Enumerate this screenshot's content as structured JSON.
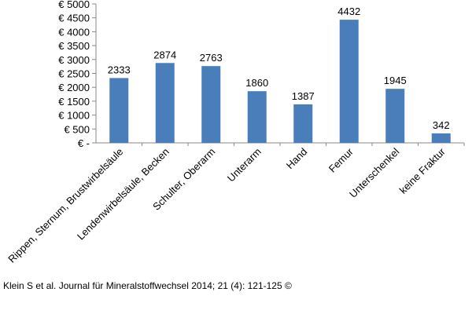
{
  "chart_data": {
    "type": "bar",
    "categories": [
      "Rippen, Sternum, Brustwirbelsäule",
      "Lendenwirbelsäule, Becken",
      "Schulter, Oberarm",
      "Unterarm",
      "Hand",
      "Femur",
      "Unterschenkel",
      "keine Fraktur"
    ],
    "values": [
      2333,
      2874,
      2763,
      1860,
      1387,
      4432,
      1945,
      342
    ],
    "data_labels": [
      "2333",
      "2874",
      "2763",
      "1860",
      "1387",
      "4432",
      "1945",
      "342"
    ],
    "y_ticks": [
      0,
      500,
      1000,
      1500,
      2000,
      2500,
      3000,
      3500,
      4000,
      4500,
      5000
    ],
    "y_tick_labels": [
      "€ -",
      "€ 500",
      "€ 1000",
      "€ 1500",
      "€ 2000",
      "€ 2500",
      "€ 3000",
      "€ 3500",
      "€ 4000",
      "€ 4500",
      "€ 5000"
    ],
    "ylim": [
      0,
      5000
    ],
    "title": "",
    "xlabel": "",
    "ylabel": "",
    "grid": false,
    "bar_color": "#4a7ebb"
  },
  "credit": "Klein S et al. Journal für Mineralstoffwechsel 2014; 21 (4): 121-125 ©"
}
